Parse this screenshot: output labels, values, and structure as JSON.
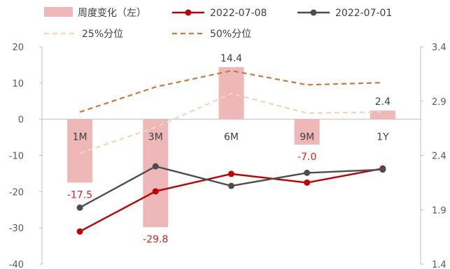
{
  "chart_data": {
    "type": "bar",
    "categories": [
      "1M",
      "3M",
      "6M",
      "9M",
      "1Y"
    ],
    "series": [
      {
        "name": "周度变化（左）",
        "kind": "bar",
        "axis": "left",
        "color": "#eeb8b8",
        "values": [
          -17.5,
          -29.8,
          14.4,
          -7.0,
          2.4
        ],
        "labels": [
          "-17.5",
          "-29.8",
          "14.4",
          "-7.0",
          "2.4"
        ],
        "label_colors": [
          "#e0201c",
          "#e0201c",
          "#404040",
          "#e0201c",
          "#404040"
        ]
      },
      {
        "name": "2022-07-08",
        "kind": "line",
        "axis": "right",
        "color": "#c00000",
        "marker": true,
        "values": [
          1.7,
          2.07,
          2.23,
          2.15,
          2.28
        ]
      },
      {
        "name": "2022-07-01",
        "kind": "line",
        "axis": "right",
        "color": "#4d4d4d",
        "marker": true,
        "values": [
          1.92,
          2.3,
          2.12,
          2.24,
          2.27
        ]
      },
      {
        "name": "25%分位",
        "kind": "line",
        "axis": "right",
        "color": "#eed8b8",
        "dash": "dash",
        "values": [
          2.42,
          2.66,
          2.97,
          2.79,
          2.8
        ]
      },
      {
        "name": "50%分位",
        "kind": "line",
        "axis": "right",
        "color": "#c87a3e",
        "dash": "dash",
        "values": [
          2.8,
          3.03,
          3.18,
          3.05,
          3.07
        ]
      }
    ],
    "left_axis": {
      "ylim": [
        -40,
        20
      ],
      "ticks": [
        "20",
        "10",
        "0",
        "-10",
        "-20",
        "-30",
        "-40"
      ]
    },
    "right_axis": {
      "ylim": [
        1.4,
        3.4
      ],
      "ticks": [
        "3.4",
        "2.9",
        "2.4",
        "1.9",
        "1.4"
      ]
    },
    "legend": {
      "placement": "top",
      "items": [
        "周度变化（左）",
        "2022-07-08",
        "2022-07-01",
        "25%分位",
        "50%分位"
      ]
    },
    "grid": false
  }
}
